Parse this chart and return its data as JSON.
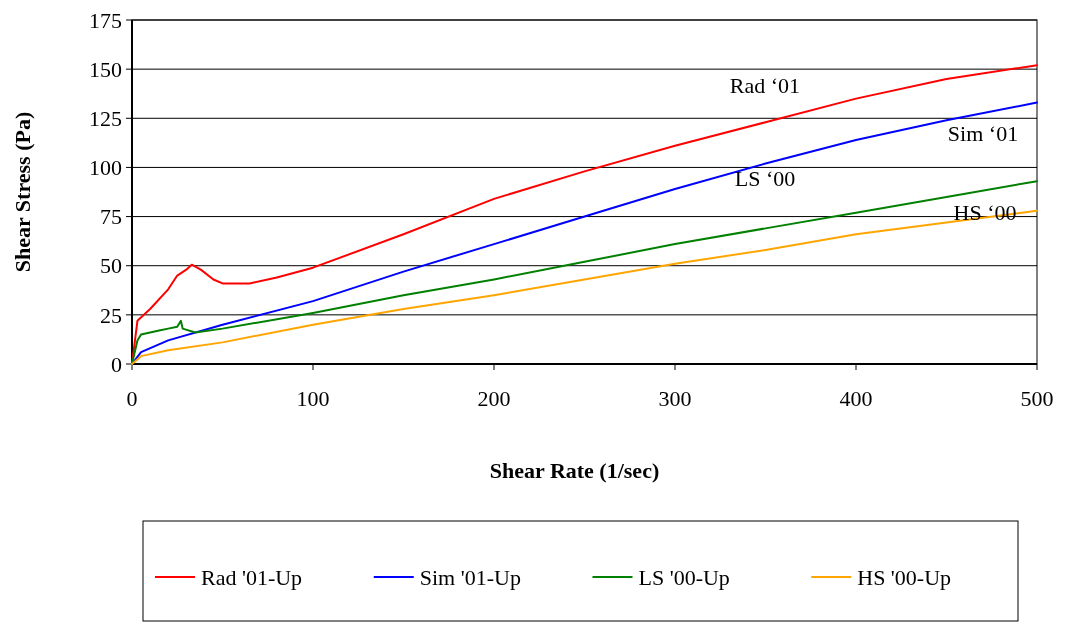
{
  "chart_data": {
    "type": "line",
    "xlabel": "Shear Rate (1/sec)",
    "ylabel": "Shear Stress (Pa)",
    "xlim": [
      0,
      500
    ],
    "xticks": [
      0,
      100,
      200,
      300,
      400,
      500
    ],
    "ylim": [
      0,
      175
    ],
    "yticks": [
      0,
      25,
      50,
      75,
      100,
      125,
      150,
      175
    ],
    "grid": "y",
    "legend": "bottom",
    "marker": "none",
    "line_style": "solid",
    "series": [
      {
        "name": "Rad '01-Up",
        "color": "#ff0000",
        "x": [
          0,
          3,
          10,
          20,
          25,
          30,
          33,
          38,
          45,
          50,
          65,
          80,
          100,
          150,
          200,
          250,
          300,
          350,
          400,
          450,
          500
        ],
        "values": [
          0,
          22,
          28,
          38,
          45,
          48,
          50.5,
          48,
          43,
          41,
          41,
          44,
          49,
          66,
          84,
          98,
          111,
          123,
          135,
          145,
          152
        ]
      },
      {
        "name": "Sim '01-Up",
        "color": "#0000ff",
        "x": [
          0,
          5,
          20,
          50,
          100,
          150,
          200,
          250,
          300,
          350,
          400,
          450,
          500
        ],
        "values": [
          0,
          6,
          12,
          20,
          32,
          47,
          61,
          75,
          89,
          102,
          114,
          124,
          133
        ]
      },
      {
        "name": "LS '00-Up",
        "color": "#008000",
        "x": [
          0,
          3,
          5,
          15,
          20,
          25,
          27,
          28,
          35,
          50,
          100,
          150,
          200,
          250,
          300,
          350,
          400,
          450,
          500
        ],
        "values": [
          0,
          12,
          15,
          17,
          18,
          19,
          22,
          18,
          16,
          18,
          26,
          35,
          43,
          52,
          61,
          69,
          77,
          85,
          93
        ]
      },
      {
        "name": "HS '00-Up",
        "color": "#ffa500",
        "x": [
          0,
          5,
          20,
          50,
          100,
          150,
          200,
          250,
          300,
          350,
          400,
          450,
          500
        ],
        "values": [
          0,
          4,
          7,
          11,
          20,
          28,
          35,
          43,
          51,
          58,
          66,
          72,
          78
        ]
      }
    ],
    "annotations": [
      "Rad ‘01",
      "Sim ‘01",
      "LS ‘00",
      "HS ‘00"
    ]
  }
}
